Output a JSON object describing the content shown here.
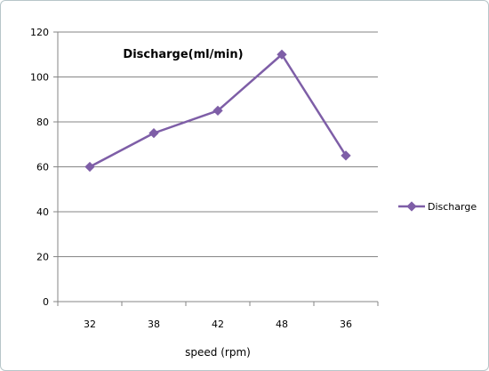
{
  "chart_data": {
    "type": "line",
    "title": "Discharge(ml/min)",
    "xlabel": "speed (rpm)",
    "ylabel": "",
    "categories": [
      "32",
      "38",
      "42",
      "48",
      "36"
    ],
    "series": [
      {
        "name": "Discharge",
        "values": [
          60,
          75,
          85,
          110,
          65
        ]
      }
    ],
    "ylim": [
      0,
      120
    ],
    "yticks": [
      "0",
      "20",
      "40",
      "60",
      "80",
      "100",
      "120"
    ],
    "grid": true,
    "legend": "right",
    "colors": {
      "series": "#7e5ea7",
      "grid": "#868686",
      "axis": "#868686"
    }
  }
}
